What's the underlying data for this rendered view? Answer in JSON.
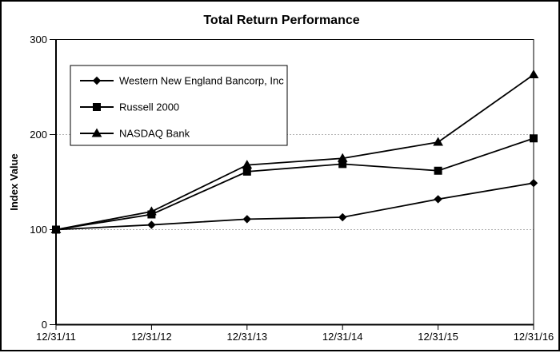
{
  "chart_data": {
    "type": "line",
    "title": "Total Return Performance",
    "ylabel": "Index Value",
    "xlabel": "",
    "ylim": [
      0,
      300
    ],
    "y_ticks": [
      300,
      200,
      100,
      0
    ],
    "gridlines": {
      "y_values": [
        200,
        100
      ],
      "style": "dotted"
    },
    "legend_position": "upper-left-inside",
    "categories": [
      "12/31/11",
      "12/31/12",
      "12/31/13",
      "12/31/14",
      "12/31/15",
      "12/31/16"
    ],
    "series": [
      {
        "name": "Western New England Bancorp, Inc",
        "marker": "diamond",
        "color": "#000000",
        "values": [
          100,
          105,
          111,
          113,
          132,
          149
        ]
      },
      {
        "name": "Russell 2000",
        "marker": "square",
        "color": "#000000",
        "values": [
          100,
          116,
          161,
          169,
          162,
          196
        ]
      },
      {
        "name": "NASDAQ Bank",
        "marker": "triangle",
        "color": "#000000",
        "values": [
          100,
          119,
          168,
          175,
          192,
          263
        ]
      }
    ]
  }
}
